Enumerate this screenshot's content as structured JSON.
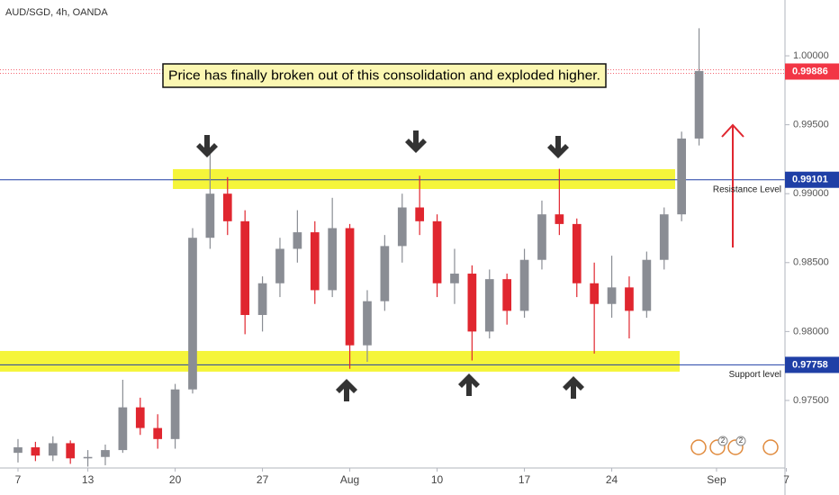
{
  "chart_data": {
    "type": "candlestick",
    "title": "AUD/SGD, 4h, OANDA",
    "annotation": "Price has finally broken out of this consolidation and exploded higher.",
    "x": [
      0,
      1,
      2,
      3,
      4,
      5,
      6,
      7,
      8,
      9,
      10,
      11,
      12,
      13,
      14,
      15,
      16,
      17,
      18,
      19,
      20,
      21,
      22,
      23,
      24,
      25,
      26,
      27,
      28,
      29,
      30,
      31,
      32,
      33,
      34,
      35,
      36,
      37,
      38,
      39
    ],
    "open": [
      0.9712,
      0.9716,
      0.971,
      0.9719,
      0.9708,
      0.9709,
      0.9714,
      0.9745,
      0.973,
      0.9722,
      0.9758,
      0.9868,
      0.99,
      0.988,
      0.9812,
      0.9835,
      0.986,
      0.9872,
      0.983,
      0.9875,
      0.979,
      0.9822,
      0.9862,
      0.989,
      0.988,
      0.9835,
      0.9842,
      0.98,
      0.9838,
      0.9815,
      0.9852,
      0.9885,
      0.9878,
      0.9835,
      0.982,
      0.9832,
      0.9815,
      0.9852,
      0.9885,
      0.994
    ],
    "high": [
      0.9722,
      0.972,
      0.9724,
      0.9721,
      0.9714,
      0.9718,
      0.9765,
      0.9752,
      0.974,
      0.9762,
      0.9875,
      0.9933,
      0.9912,
      0.9888,
      0.984,
      0.9868,
      0.9888,
      0.988,
      0.9897,
      0.9878,
      0.983,
      0.987,
      0.99,
      0.9913,
      0.9885,
      0.986,
      0.9848,
      0.9845,
      0.9842,
      0.986,
      0.9895,
      0.9918,
      0.9882,
      0.985,
      0.9855,
      0.984,
      0.9858,
      0.989,
      0.9945,
      1.002
    ],
    "low": [
      0.9705,
      0.9706,
      0.9706,
      0.9704,
      0.9702,
      0.9703,
      0.9712,
      0.9725,
      0.9715,
      0.9715,
      0.9755,
      0.986,
      0.987,
      0.9798,
      0.98,
      0.9825,
      0.985,
      0.982,
      0.9825,
      0.9773,
      0.9778,
      0.9815,
      0.985,
      0.987,
      0.9825,
      0.982,
      0.9779,
      0.9795,
      0.9805,
      0.981,
      0.9845,
      0.987,
      0.9825,
      0.9784,
      0.981,
      0.9795,
      0.981,
      0.9845,
      0.988,
      0.9935
    ],
    "close": [
      0.9716,
      0.971,
      0.9719,
      0.9708,
      0.9709,
      0.9714,
      0.9745,
      0.973,
      0.9722,
      0.9758,
      0.9868,
      0.99,
      0.988,
      0.9812,
      0.9835,
      0.986,
      0.9872,
      0.983,
      0.9875,
      0.979,
      0.9822,
      0.9862,
      0.989,
      0.988,
      0.9835,
      0.9842,
      0.98,
      0.9838,
      0.9815,
      0.9852,
      0.9885,
      0.9878,
      0.9835,
      0.982,
      0.9832,
      0.9815,
      0.9852,
      0.9885,
      0.994,
      0.9989
    ],
    "up_color": "#8a8d94",
    "down_color": "#e0262f",
    "xlim": [
      -1.03,
      43.92
    ],
    "xticks": [
      {
        "value": 0,
        "label": "7"
      },
      {
        "value": 4,
        "label": "13"
      },
      {
        "value": 9,
        "label": "20"
      },
      {
        "value": 14,
        "label": "27"
      },
      {
        "value": 19,
        "label": "Aug"
      },
      {
        "value": 24,
        "label": "10"
      },
      {
        "value": 29,
        "label": "17"
      },
      {
        "value": 34,
        "label": "24"
      },
      {
        "value": 40,
        "label": "Sep"
      },
      {
        "value": 44,
        "label": "7"
      }
    ],
    "ylim": [
      0.9701,
      1.00405
    ],
    "yticks": [
      {
        "value": 1.0,
        "label": "1.00000"
      },
      {
        "value": 0.995,
        "label": "0.99500"
      },
      {
        "value": 0.99,
        "label": "0.99000"
      },
      {
        "value": 0.985,
        "label": "0.98500"
      },
      {
        "value": 0.98,
        "label": "0.98000"
      },
      {
        "value": 0.975,
        "label": "0.97500"
      }
    ],
    "current_price": {
      "value": 0.99886,
      "label": "0.99886",
      "color": "#f23645"
    },
    "levels": [
      {
        "name": "Resistance Level",
        "value": 0.99101,
        "label": "0.99101",
        "color": "#1f3fa6"
      },
      {
        "name": "Support level",
        "value": 0.97758,
        "label": "0.97758",
        "color": "#1f3fa6"
      }
    ],
    "zones": [
      {
        "low": 0.99034,
        "high": 0.99178,
        "x": [
          8.87,
          37.63
        ],
        "color": "#f5f53a"
      },
      {
        "low": 0.97709,
        "high": 0.97859,
        "x": [
          -1.03,
          37.89
        ],
        "color": "#f5f53a"
      }
    ],
    "event_badges": [
      "2",
      "2"
    ]
  }
}
